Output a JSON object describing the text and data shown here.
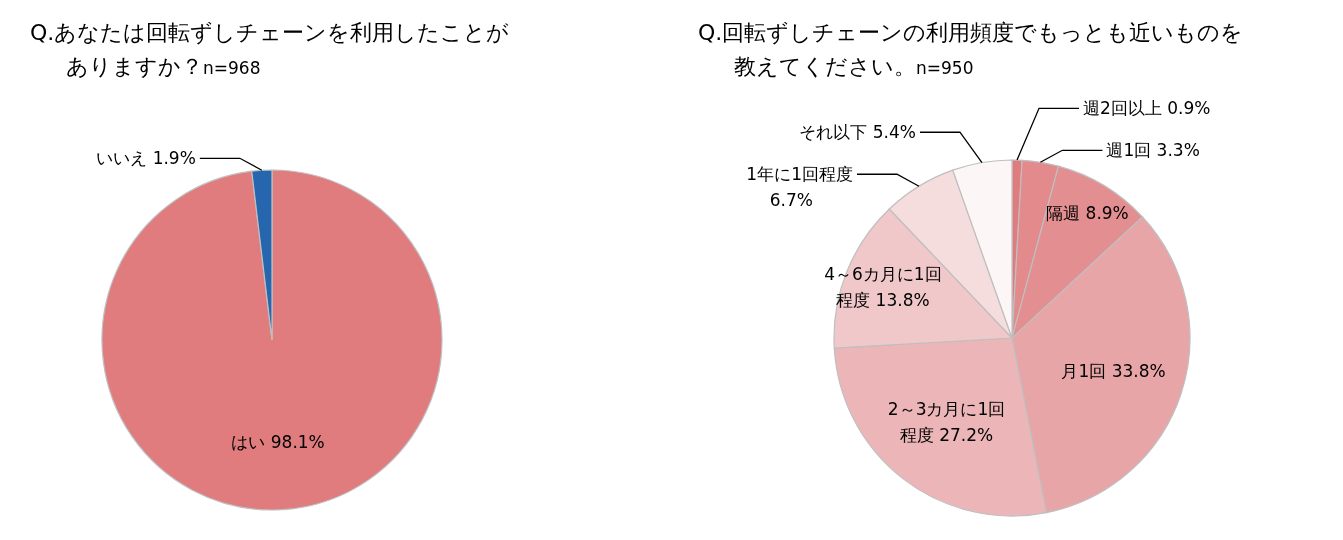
{
  "chart_data": [
    {
      "type": "pie",
      "title": "Q.あなたは回転ずしチェーンを利用したことがありますか？",
      "subtitle": "n=968",
      "categories": [
        "はい",
        "いいえ"
      ],
      "values": [
        98.1,
        1.9
      ],
      "value_labels": [
        "98.1%",
        "1.9%"
      ],
      "colors": [
        "#e07b7e",
        "#2566ae"
      ]
    },
    {
      "type": "pie",
      "title": "Q.回転ずしチェーンの利用頻度でもっとも近いものを教えてください。",
      "subtitle": "n=950",
      "categories": [
        "週2回以上",
        "週1回",
        "隔週",
        "月1回",
        "2～3カ月に1回程度",
        "4～6カ月に1回程度",
        "1年に1回程度",
        "それ以下"
      ],
      "values": [
        0.9,
        3.3,
        8.9,
        33.8,
        27.2,
        13.8,
        6.7,
        5.4
      ],
      "value_labels": [
        "0.9%",
        "3.3%",
        "8.9%",
        "33.8%",
        "27.2%",
        "13.8%",
        "6.7%",
        "5.4%"
      ],
      "colors": [
        "#e07b7e",
        "#e28a8c",
        "#e38e90",
        "#e8a5a7",
        "#ecb6b8",
        "#f0c8ca",
        "#f5dcdd",
        "#fcf6f7"
      ]
    }
  ]
}
